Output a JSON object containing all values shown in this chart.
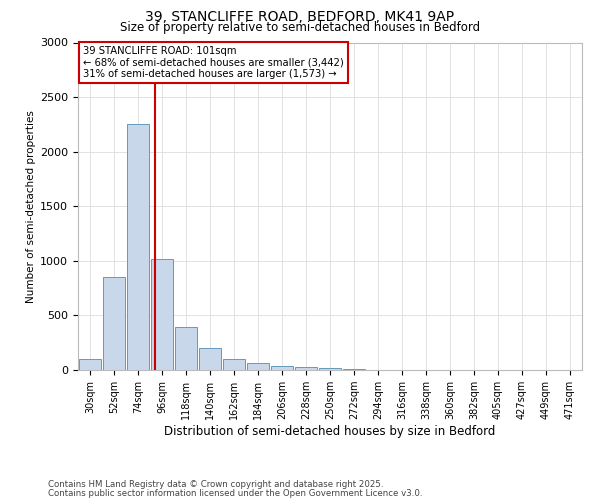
{
  "title1": "39, STANCLIFFE ROAD, BEDFORD, MK41 9AP",
  "title2": "Size of property relative to semi-detached houses in Bedford",
  "xlabel": "Distribution of semi-detached houses by size in Bedford",
  "ylabel": "Number of semi-detached properties",
  "bar_labels": [
    "30sqm",
    "52sqm",
    "74sqm",
    "96sqm",
    "118sqm",
    "140sqm",
    "162sqm",
    "184sqm",
    "206sqm",
    "228sqm",
    "250sqm",
    "272sqm",
    "294sqm",
    "316sqm",
    "338sqm",
    "360sqm",
    "382sqm",
    "405sqm",
    "427sqm",
    "449sqm",
    "471sqm"
  ],
  "bar_values": [
    100,
    850,
    2250,
    1020,
    390,
    200,
    105,
    65,
    40,
    25,
    15,
    5,
    2,
    1,
    0,
    0,
    0,
    0,
    0,
    0,
    0
  ],
  "bar_color": "#c8d8ea",
  "bar_edge_color": "#6699bb",
  "red_line_color": "#cc0000",
  "annotation_title": "39 STANCLIFFE ROAD: 101sqm",
  "annotation_line1": "← 68% of semi-detached houses are smaller (3,442)",
  "annotation_line2": "31% of semi-detached houses are larger (1,573) →",
  "annotation_box_color": "#ffffff",
  "annotation_box_edge": "#cc0000",
  "ylim": [
    0,
    3000
  ],
  "yticks": [
    0,
    500,
    1000,
    1500,
    2000,
    2500,
    3000
  ],
  "footnote1": "Contains HM Land Registry data © Crown copyright and database right 2025.",
  "footnote2": "Contains public sector information licensed under the Open Government Licence v3.0.",
  "bg_color": "#ffffff",
  "grid_color": "#dddddd"
}
